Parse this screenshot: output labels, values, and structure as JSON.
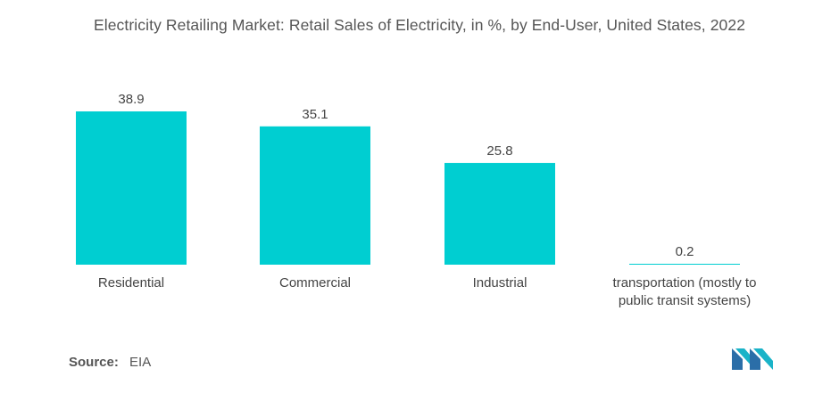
{
  "title": "Electricity Retailing Market: Retail Sales of Electricity, in %, by End-User, United States, 2022",
  "source": {
    "label": "Source:",
    "value": "EIA"
  },
  "colors": {
    "bar": "#00CED1",
    "text": "#444444"
  },
  "chart_data": {
    "type": "bar",
    "title": "Electricity Retailing Market: Retail Sales of Electricity, in %, by End-User, United States, 2022",
    "categories": [
      [
        "Residential"
      ],
      [
        "Commercial"
      ],
      [
        "Industrial"
      ],
      [
        "transportation (mostly to",
        "public transit systems)"
      ]
    ],
    "values": [
      38.9,
      35.1,
      25.8,
      0.2
    ],
    "data_labels": [
      "38.9",
      "35.1",
      "25.8",
      "0.2"
    ],
    "xlabel": "",
    "ylabel": "",
    "ylim": [
      0,
      38.9
    ],
    "grid": false,
    "legend": "none"
  }
}
